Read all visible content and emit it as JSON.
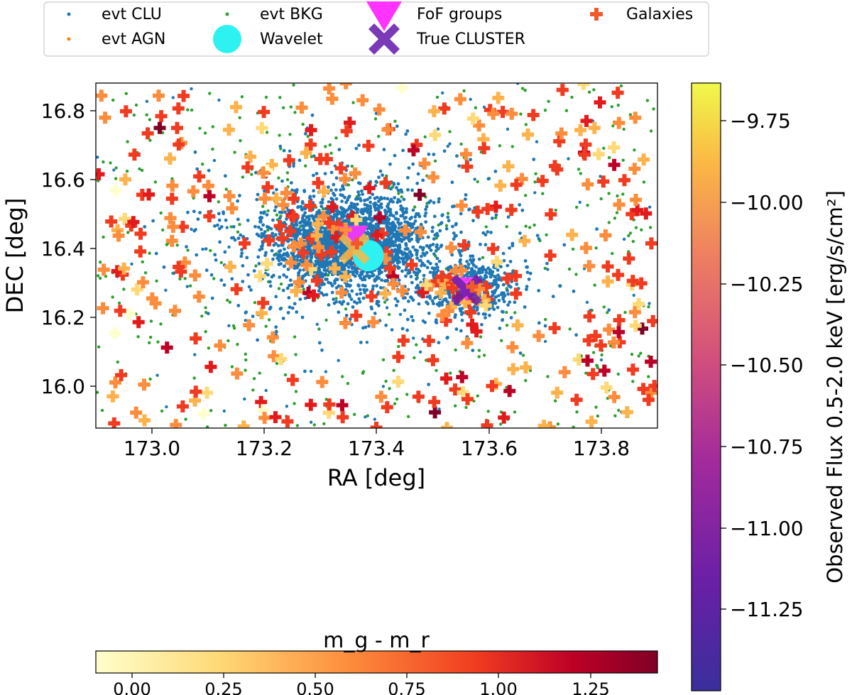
{
  "chart_data": {
    "type": "scatter",
    "xlabel": "RA [deg]",
    "ylabel": "DEC [deg]",
    "xlim": [
      172.9,
      173.9
    ],
    "ylim": [
      15.92,
      16.92
    ],
    "x_ticks": [
      "173.0",
      "173.2",
      "173.4",
      "173.6",
      "173.8"
    ],
    "y_ticks": [
      "16.0",
      "16.2",
      "16.4",
      "16.6",
      "16.8"
    ],
    "legend": {
      "position": "top",
      "entries": [
        "evt CLU",
        "evt AGN",
        "evt BKG",
        "Wavelet",
        "FoF groups",
        "True CLUSTER",
        "Galaxies"
      ]
    },
    "colorbar_flux": {
      "label": "Observed Flux 0.5-2.0 keV [erg/s/cm²]",
      "range": [
        -11.45,
        -9.58
      ],
      "ticks": [
        "−9.75",
        "−10.00",
        "−10.25",
        "−10.50",
        "−10.75",
        "−11.00",
        "−11.25"
      ]
    },
    "colorbar_color": {
      "label": "m_g - m_r",
      "range": [
        -0.1,
        1.43
      ],
      "ticks": [
        "0.00",
        "0.25",
        "0.50",
        "0.75",
        "1.00",
        "1.25"
      ]
    },
    "clusters": [
      {
        "ra": 173.35,
        "dec": 16.46,
        "sigma": 0.065,
        "count": 2600
      },
      {
        "ra": 173.56,
        "dec": 16.33,
        "sigma": 0.04,
        "count": 500
      }
    ],
    "wavelet_detections": [
      {
        "ra": 173.385,
        "dec": 16.42
      }
    ],
    "fof_groups": [
      {
        "ra": 173.36,
        "dec": 16.47,
        "log_flux": -10.75
      },
      {
        "ra": 173.56,
        "dec": 16.32,
        "log_flux": -10.7
      }
    ],
    "true_clusters": [
      {
        "ra": 173.36,
        "dec": 16.44,
        "log_flux": -9.8
      },
      {
        "ra": 173.56,
        "dec": 16.32,
        "log_flux": -11.2
      }
    ],
    "background_events": {
      "count": 420
    },
    "galaxies": {
      "count": 380
    }
  },
  "colors": {
    "evt_clu": "#1f77b4",
    "evt_agn": "#ff7f0e",
    "evt_bkg": "#2ca02c",
    "wavelet": "#2ef2f2",
    "fof": "#ff33ff",
    "true_cluster": "#7a39b6",
    "galaxy": "#f05a28"
  }
}
